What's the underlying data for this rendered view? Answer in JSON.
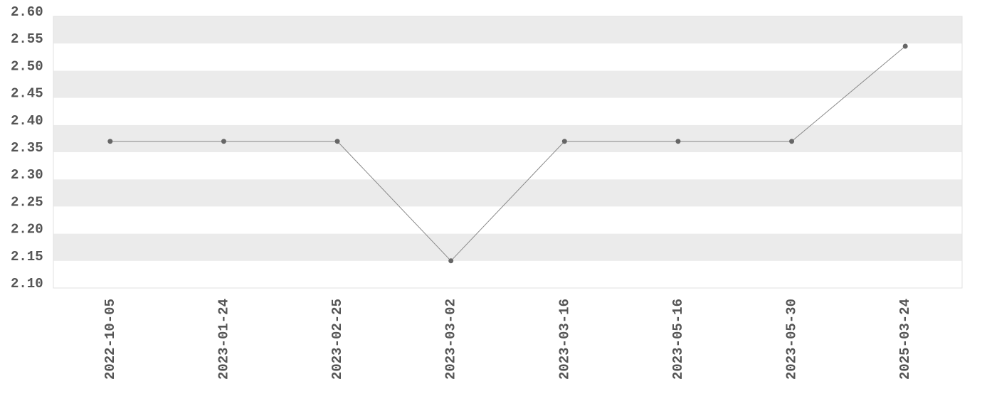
{
  "chart_data": {
    "type": "line",
    "categories": [
      "2022-10-05",
      "2023-01-24",
      "2023-02-25",
      "2023-03-02",
      "2023-03-16",
      "2023-05-16",
      "2023-05-30",
      "2025-03-24"
    ],
    "series": [
      {
        "color": "#888888",
        "marker_color": "#666666",
        "values": [
          2.37,
          2.37,
          2.37,
          2.15,
          2.37,
          2.37,
          2.37,
          2.545
        ]
      }
    ],
    "ylim": [
      2.1,
      2.6
    ],
    "yticks": [
      {
        "value": 2.1,
        "label": "2.10"
      },
      {
        "value": 2.15,
        "label": "2.15"
      },
      {
        "value": 2.2,
        "label": "2.20"
      },
      {
        "value": 2.25,
        "label": "2.25"
      },
      {
        "value": 2.3,
        "label": "2.30"
      },
      {
        "value": 2.35,
        "label": "2.35"
      },
      {
        "value": 2.4,
        "label": "2.40"
      },
      {
        "value": 2.45,
        "label": "2.45"
      },
      {
        "value": 2.5,
        "label": "2.50"
      },
      {
        "value": 2.55,
        "label": "2.55"
      },
      {
        "value": 2.6,
        "label": "2.60"
      }
    ],
    "grid": true
  }
}
